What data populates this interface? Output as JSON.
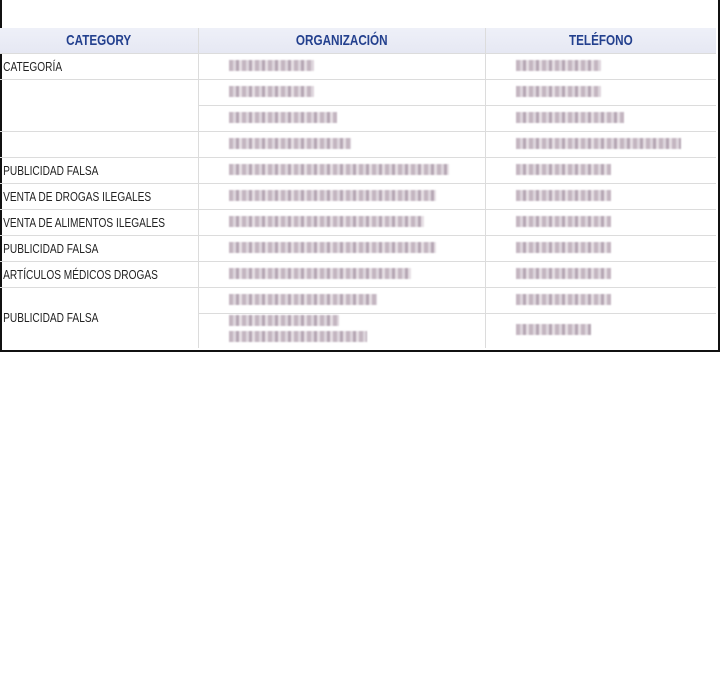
{
  "table": {
    "headers": [
      "CATEGORY",
      "ORGANIZACIÓN",
      "TELÉFONO"
    ],
    "categories": [
      "CATEGORÍA",
      "PUBLICIDAD FALSA",
      "VENTA DE DROGAS ILEGALES",
      "VENTA DE ALIMENTOS ILEGALES",
      "PUBLICIDAD FALSA",
      "ARTÍCULOS MÉDICOS DROGAS",
      "PUBLICIDAD FALSA"
    ]
  },
  "colors": {
    "header_text": "#23408e",
    "top_bar": "#2a63b0"
  }
}
